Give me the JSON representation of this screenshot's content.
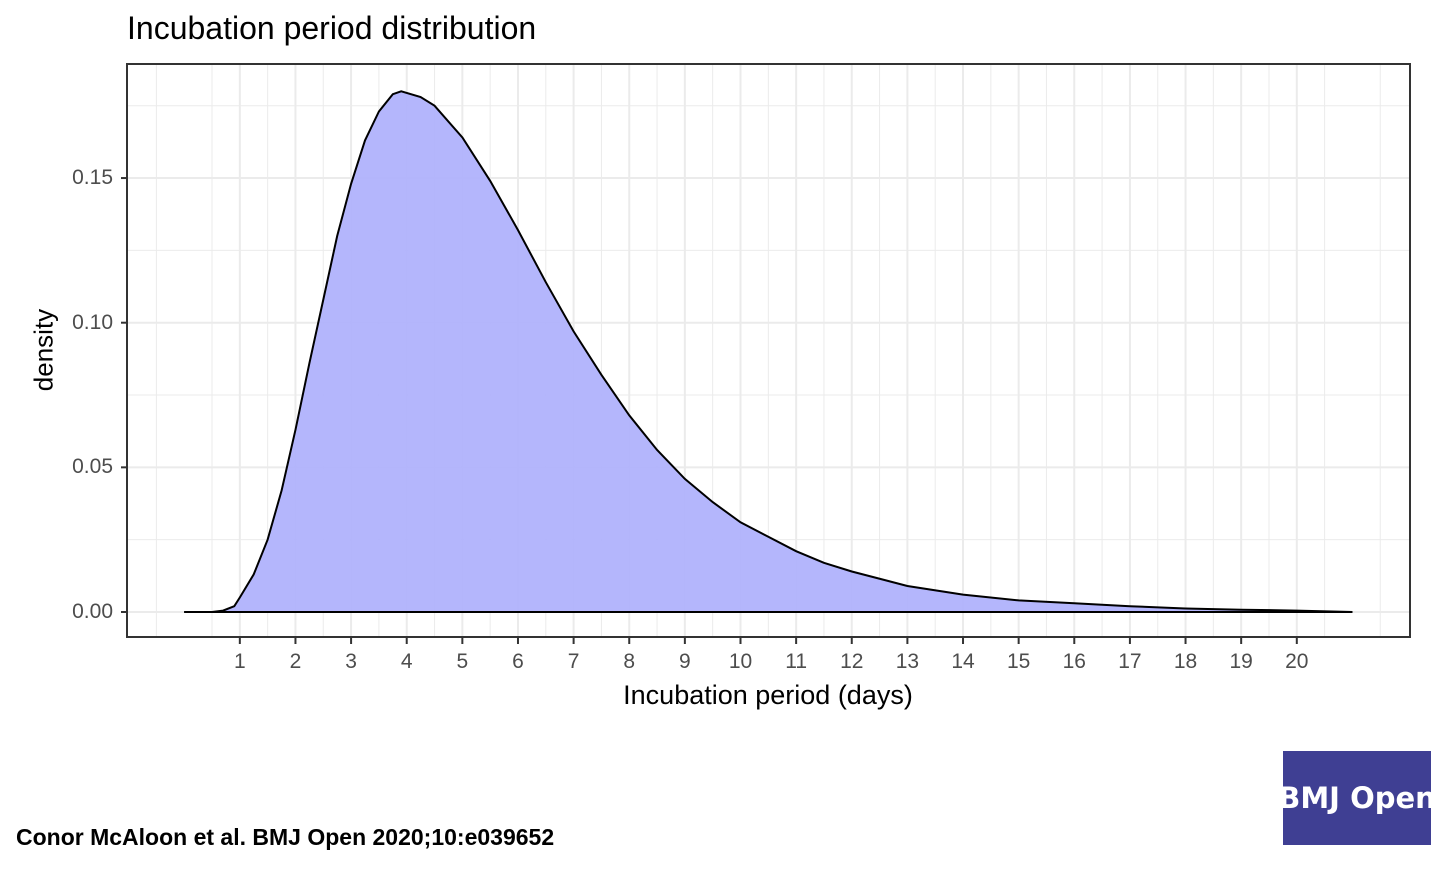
{
  "title": "Incubation period distribution",
  "citation": "Conor McAloon et al. BMJ Open 2020;10:e039652",
  "logo": {
    "text": "BMJ Open",
    "color": "#3f3f93"
  },
  "colors": {
    "fill": "#b0b2fc",
    "line": "#000000",
    "grid": "#ebebeb",
    "panel_border": "#333333",
    "tick_text": "#4d4d4d"
  },
  "axes": {
    "xlabel": "Incubation period (days)",
    "ylabel": "density",
    "yticks": [
      "0.00",
      "0.05",
      "0.10",
      "0.15"
    ],
    "xticks": [
      "1",
      "2",
      "3",
      "4",
      "5",
      "6",
      "7",
      "8",
      "9",
      "10",
      "11",
      "12",
      "13",
      "14",
      "15",
      "16",
      "17",
      "18",
      "19",
      "20"
    ]
  },
  "chart_data": {
    "type": "area",
    "title": "Incubation period distribution",
    "xlabel": "Incubation period (days)",
    "ylabel": "density",
    "xlim": [
      -1.0,
      22.1
    ],
    "ylim": [
      -0.009,
      0.189
    ],
    "grid": true,
    "legend": null,
    "x_ticks": [
      1,
      2,
      3,
      4,
      5,
      6,
      7,
      8,
      9,
      10,
      11,
      12,
      13,
      14,
      15,
      16,
      17,
      18,
      19,
      20
    ],
    "y_ticks": [
      0.0,
      0.05,
      0.1,
      0.15
    ],
    "series": [
      {
        "name": "density",
        "x": [
          0.0,
          0.5,
          0.7,
          0.9,
          1.0,
          1.25,
          1.5,
          1.75,
          2.0,
          2.25,
          2.5,
          2.75,
          3.0,
          3.25,
          3.5,
          3.75,
          3.9,
          4.25,
          4.5,
          5.0,
          5.5,
          6.0,
          6.5,
          7.0,
          7.5,
          8.0,
          8.5,
          9.0,
          9.5,
          10.0,
          10.5,
          11.0,
          11.5,
          12.0,
          13.0,
          14.0,
          15.0,
          16.0,
          17.0,
          18.0,
          19.0,
          20.0,
          21.0
        ],
        "values": [
          0.0,
          0.0,
          0.0005,
          0.002,
          0.005,
          0.013,
          0.025,
          0.042,
          0.063,
          0.086,
          0.108,
          0.13,
          0.148,
          0.163,
          0.173,
          0.179,
          0.18,
          0.178,
          0.175,
          0.164,
          0.149,
          0.132,
          0.114,
          0.097,
          0.082,
          0.068,
          0.056,
          0.046,
          0.038,
          0.031,
          0.026,
          0.021,
          0.017,
          0.014,
          0.009,
          0.006,
          0.004,
          0.003,
          0.002,
          0.0012,
          0.0008,
          0.0005,
          0.0
        ]
      }
    ]
  }
}
